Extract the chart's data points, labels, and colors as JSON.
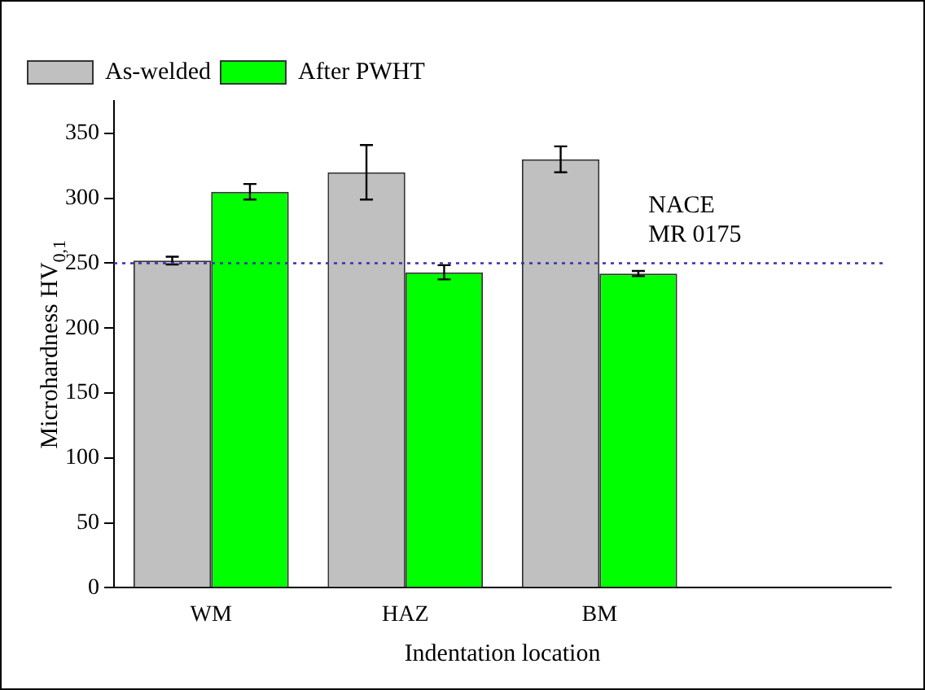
{
  "chart_data": {
    "type": "bar",
    "xlabel": "Indentation location",
    "ylabel": "Microhardness HV$_{0,1}$",
    "categories": [
      "WM",
      "HAZ",
      "BM",
      null
    ],
    "series": [
      {
        "name": "As-welded",
        "color": "#c0c0c0",
        "values": [
          252,
          320,
          330,
          null
        ],
        "errors": [
          3,
          21,
          10,
          null
        ]
      },
      {
        "name": "After PWHT",
        "color": "#00ff00",
        "values": [
          305,
          243,
          242,
          null
        ],
        "errors": [
          6,
          5.5,
          2,
          null
        ]
      }
    ],
    "ylim": [
      0,
      375
    ],
    "yticks": [
      0,
      50,
      100,
      150,
      200,
      250,
      300,
      350
    ],
    "ref_lines": [
      {
        "axis": "y",
        "value": 250,
        "label": "NACE MR 0175",
        "color": "#3333aa",
        "line_style": "dotted"
      }
    ],
    "legend": "top left",
    "grid": false
  }
}
